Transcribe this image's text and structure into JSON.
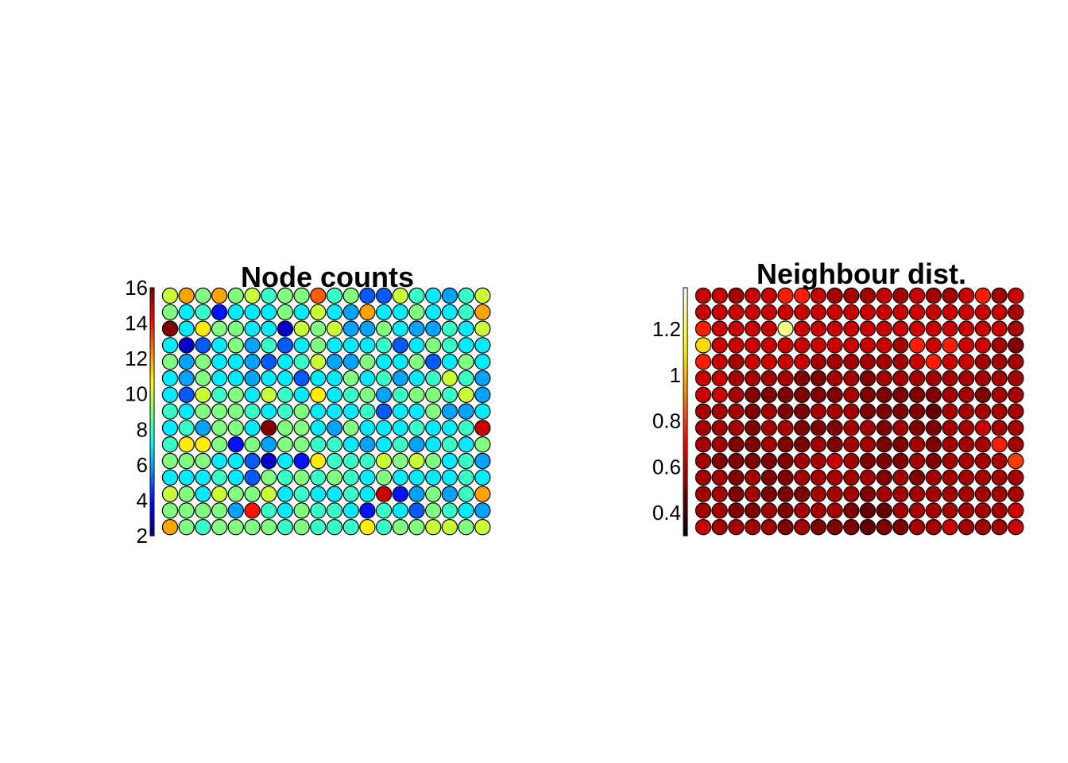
{
  "chart_data": [
    {
      "type": "heatmap",
      "title": "Node counts",
      "colormap": "jet",
      "color_range": [
        2,
        16
      ],
      "colorbar_ticks": [
        {
          "value": 2,
          "label": "2"
        },
        {
          "value": 4,
          "label": "4"
        },
        {
          "value": 6,
          "label": "6"
        },
        {
          "value": 8,
          "label": "8"
        },
        {
          "value": 10,
          "label": "10"
        },
        {
          "value": 12,
          "label": "12"
        },
        {
          "value": 14,
          "label": "14"
        },
        {
          "value": 16,
          "label": "16"
        }
      ],
      "rows": 15,
      "cols": 20,
      "values": [
        [
          10,
          12,
          9,
          12,
          9,
          10,
          8,
          9,
          9,
          13,
          8,
          9,
          5,
          5,
          10,
          8,
          7,
          6,
          8,
          10
        ],
        [
          9,
          7,
          8,
          4,
          7,
          7,
          7,
          9,
          7,
          10,
          7,
          6,
          12,
          7,
          7,
          9,
          7,
          7,
          8,
          12
        ],
        [
          16,
          7,
          11,
          9,
          9,
          7,
          7,
          3,
          10,
          9,
          10,
          6,
          6,
          9,
          7,
          6,
          6,
          8,
          7,
          10
        ],
        [
          7,
          3,
          5,
          7,
          9,
          6,
          8,
          5,
          7,
          9,
          7,
          7,
          7,
          8,
          5,
          7,
          9,
          8,
          7,
          7
        ],
        [
          9,
          6,
          9,
          7,
          7,
          6,
          5,
          7,
          8,
          10,
          6,
          6,
          9,
          7,
          7,
          9,
          5,
          7,
          9,
          7
        ],
        [
          7,
          6,
          9,
          7,
          7,
          6,
          7,
          7,
          5,
          7,
          7,
          9,
          7,
          8,
          6,
          7,
          8,
          10,
          8,
          6
        ],
        [
          7,
          5,
          10,
          8,
          9,
          7,
          10,
          8,
          7,
          11,
          7,
          8,
          9,
          6,
          8,
          9,
          9,
          8,
          10,
          6
        ],
        [
          8,
          7,
          9,
          9,
          9,
          8,
          7,
          8,
          9,
          7,
          7,
          7,
          8,
          5,
          7,
          7,
          9,
          6,
          6,
          7
        ],
        [
          7,
          8,
          6,
          9,
          9,
          7,
          16,
          9,
          9,
          7,
          6,
          9,
          7,
          7,
          7,
          8,
          7,
          7,
          8,
          15
        ],
        [
          8,
          11,
          11,
          9,
          4,
          9,
          6,
          9,
          9,
          8,
          8,
          7,
          6,
          7,
          8,
          6,
          7,
          8,
          7,
          9
        ],
        [
          9,
          9,
          9,
          7,
          7,
          5,
          3,
          7,
          4,
          11,
          8,
          8,
          8,
          10,
          9,
          10,
          9,
          7,
          8,
          6
        ],
        [
          7,
          7,
          7,
          8,
          7,
          5,
          9,
          8,
          9,
          8,
          9,
          8,
          7,
          9,
          7,
          7,
          7,
          7,
          8,
          7
        ],
        [
          10,
          9,
          7,
          10,
          9,
          9,
          10,
          7,
          8,
          7,
          7,
          8,
          7,
          15,
          4,
          6,
          9,
          6,
          8,
          12
        ],
        [
          9,
          9,
          9,
          9,
          6,
          14,
          8,
          7,
          9,
          8,
          8,
          7,
          4,
          8,
          7,
          5,
          9,
          8,
          7,
          6
        ],
        [
          12,
          9,
          8,
          9,
          9,
          9,
          9,
          8,
          9,
          8,
          8,
          8,
          11,
          8,
          9,
          9,
          10,
          10,
          9,
          10
        ]
      ]
    },
    {
      "type": "heatmap",
      "title": "Neighbour dist.",
      "colormap": "hot",
      "color_range": [
        0.3,
        1.38
      ],
      "colorbar_ticks": [
        {
          "value": 0.4,
          "label": "0.4"
        },
        {
          "value": 0.6,
          "label": "0.6"
        },
        {
          "value": 0.8,
          "label": "0.8"
        },
        {
          "value": 1.0,
          "label": "1"
        },
        {
          "value": 1.2,
          "label": "1.2"
        }
      ],
      "rows": 15,
      "cols": 20,
      "values": [
        [
          0.62,
          0.62,
          0.56,
          0.62,
          0.62,
          0.75,
          0.75,
          0.62,
          0.56,
          0.56,
          0.56,
          0.62,
          0.56,
          0.62,
          0.56,
          0.56,
          0.62,
          0.75,
          0.56,
          0.62
        ],
        [
          0.62,
          0.62,
          0.62,
          0.62,
          0.62,
          0.62,
          0.62,
          0.62,
          0.62,
          0.62,
          0.62,
          0.62,
          0.62,
          0.62,
          0.62,
          0.62,
          0.62,
          0.62,
          0.62,
          0.56
        ],
        [
          0.75,
          0.62,
          0.62,
          0.62,
          0.62,
          1.25,
          0.62,
          0.62,
          0.62,
          0.62,
          0.62,
          0.62,
          0.62,
          0.62,
          0.62,
          0.62,
          0.62,
          0.62,
          0.62,
          0.56
        ],
        [
          1.05,
          0.62,
          0.62,
          0.62,
          0.62,
          0.62,
          0.62,
          0.62,
          0.62,
          0.62,
          0.62,
          0.62,
          0.56,
          0.75,
          0.62,
          0.75,
          0.62,
          0.62,
          0.56,
          0.5
        ],
        [
          0.75,
          0.62,
          0.56,
          0.62,
          0.62,
          0.62,
          0.62,
          0.56,
          0.56,
          0.56,
          0.56,
          0.56,
          0.56,
          0.62,
          0.75,
          0.62,
          0.62,
          0.56,
          0.56,
          0.56
        ],
        [
          0.62,
          0.62,
          0.56,
          0.56,
          0.56,
          0.56,
          0.5,
          0.5,
          0.56,
          0.56,
          0.5,
          0.56,
          0.56,
          0.56,
          0.56,
          0.56,
          0.56,
          0.56,
          0.56,
          0.56
        ],
        [
          0.62,
          0.62,
          0.56,
          0.5,
          0.5,
          0.5,
          0.5,
          0.5,
          0.5,
          0.56,
          0.5,
          0.5,
          0.5,
          0.5,
          0.5,
          0.56,
          0.56,
          0.5,
          0.56,
          0.56
        ],
        [
          0.56,
          0.56,
          0.56,
          0.5,
          0.56,
          0.5,
          0.5,
          0.56,
          0.56,
          0.56,
          0.5,
          0.5,
          0.5,
          0.5,
          0.46,
          0.56,
          0.56,
          0.56,
          0.56,
          0.56
        ],
        [
          0.56,
          0.56,
          0.56,
          0.5,
          0.56,
          0.56,
          0.5,
          0.5,
          0.5,
          0.56,
          0.56,
          0.5,
          0.56,
          0.5,
          0.5,
          0.56,
          0.56,
          0.62,
          0.56,
          0.56
        ],
        [
          0.56,
          0.56,
          0.5,
          0.5,
          0.56,
          0.5,
          0.5,
          0.56,
          0.5,
          0.56,
          0.56,
          0.5,
          0.5,
          0.56,
          0.5,
          0.56,
          0.56,
          0.56,
          0.75,
          0.56
        ],
        [
          0.56,
          0.5,
          0.5,
          0.5,
          0.5,
          0.5,
          0.56,
          0.56,
          0.62,
          0.56,
          0.5,
          0.5,
          0.5,
          0.56,
          0.5,
          0.56,
          0.56,
          0.56,
          0.56,
          0.8
        ],
        [
          0.56,
          0.56,
          0.5,
          0.56,
          0.5,
          0.5,
          0.56,
          0.56,
          0.56,
          0.56,
          0.56,
          0.5,
          0.56,
          0.5,
          0.56,
          0.56,
          0.56,
          0.56,
          0.56,
          0.56
        ],
        [
          0.56,
          0.56,
          0.5,
          0.56,
          0.5,
          0.5,
          0.5,
          0.56,
          0.56,
          0.56,
          0.5,
          0.56,
          0.56,
          0.56,
          0.56,
          0.56,
          0.56,
          0.56,
          0.56,
          0.56
        ],
        [
          0.56,
          0.56,
          0.5,
          0.5,
          0.56,
          0.5,
          0.56,
          0.56,
          0.56,
          0.5,
          0.46,
          0.46,
          0.56,
          0.56,
          0.56,
          0.56,
          0.56,
          0.56,
          0.56,
          0.62
        ],
        [
          0.62,
          0.56,
          0.56,
          0.56,
          0.56,
          0.5,
          0.56,
          0.5,
          0.5,
          0.5,
          0.46,
          0.5,
          0.5,
          0.56,
          0.56,
          0.62,
          0.56,
          0.56,
          0.56,
          0.62
        ]
      ]
    }
  ]
}
